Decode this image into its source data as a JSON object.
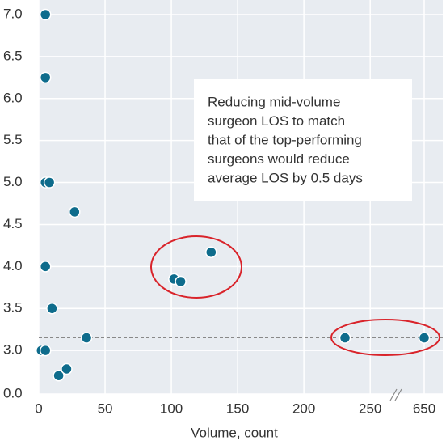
{
  "chart_data": {
    "type": "scatter",
    "x_label": "Volume, count",
    "annotation": [
      "Reducing mid-volume",
      "surgeon LOS to match",
      "that of the top-performing",
      "surgeons would reduce",
      "average LOS by 0.5 days"
    ],
    "x": [
      5,
      5,
      5,
      8,
      27,
      5,
      10,
      36,
      2,
      5,
      15,
      21,
      102,
      107,
      130,
      231,
      650
    ],
    "y": [
      7.0,
      6.25,
      5.0,
      5.0,
      4.65,
      4.0,
      3.5,
      3.15,
      3.0,
      3.0,
      2.7,
      2.78,
      3.85,
      3.82,
      4.17,
      3.15,
      3.15
    ],
    "color": "#0e6c8c",
    "reference_y": 3.15,
    "xlim": [
      0,
      660
    ],
    "xbreak": [
      270,
      640
    ],
    "xticks": [
      0,
      50,
      100,
      150,
      200,
      250,
      650
    ],
    "ylim": [
      0,
      7
    ],
    "ybreak": [
      0,
      2.5
    ],
    "yticks": [
      {
        "value": 0,
        "label": "0.0"
      },
      {
        "value": 3,
        "label": "3.0"
      },
      {
        "value": 3.5,
        "label": "3.5"
      },
      {
        "value": 4,
        "label": "4.0"
      },
      {
        "value": 4.5,
        "label": "4.5"
      },
      {
        "value": 5,
        "label": "5.0"
      },
      {
        "value": 5.5,
        "label": "5.5"
      },
      {
        "value": 6,
        "label": "6.0"
      },
      {
        "value": 6.5,
        "label": "6.5"
      },
      {
        "value": 7,
        "label": "7.0"
      }
    ],
    "grid": true
  }
}
